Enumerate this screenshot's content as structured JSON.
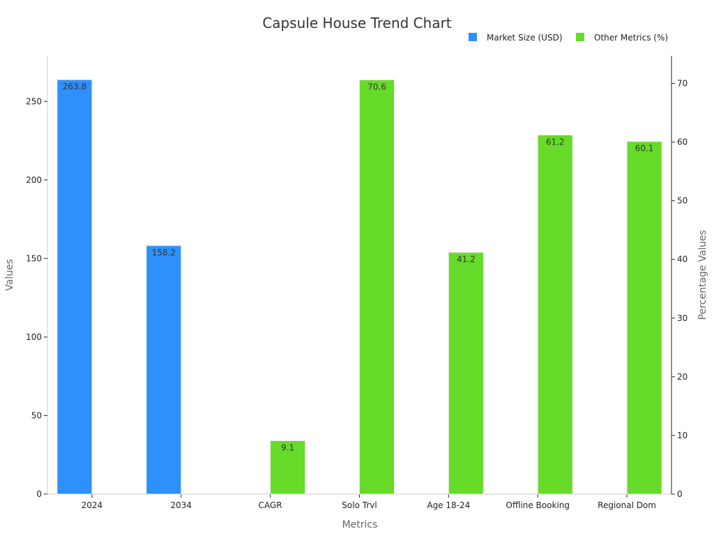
{
  "chart_data": {
    "type": "bar",
    "title": "Capsule House Trend Chart",
    "xlabel": "Metrics",
    "ylabel": "Values",
    "y2label": "Percentage Values",
    "categories": [
      "2024",
      "2034",
      "CAGR",
      "Solo Trvl",
      "Age 18-24",
      "Offline Booking",
      "Regional Dom"
    ],
    "ylim": [
      0,
      279
    ],
    "y2lim": [
      0,
      74.7
    ],
    "yticks": [
      0,
      50,
      100,
      150,
      200,
      250
    ],
    "y2ticks": [
      0,
      10,
      20,
      30,
      40,
      50,
      60,
      70
    ],
    "legend_position": "top-right",
    "grid": false,
    "series": [
      {
        "name": "Market Size (USD)",
        "axis": "left",
        "color": "#2E90FA",
        "values": [
          263.8,
          158.2,
          null,
          null,
          null,
          null,
          null
        ]
      },
      {
        "name": "Other Metrics (%)",
        "axis": "right",
        "color": "#66DB29",
        "values": [
          null,
          null,
          9.1,
          70.6,
          41.2,
          61.2,
          60.1
        ]
      }
    ]
  }
}
